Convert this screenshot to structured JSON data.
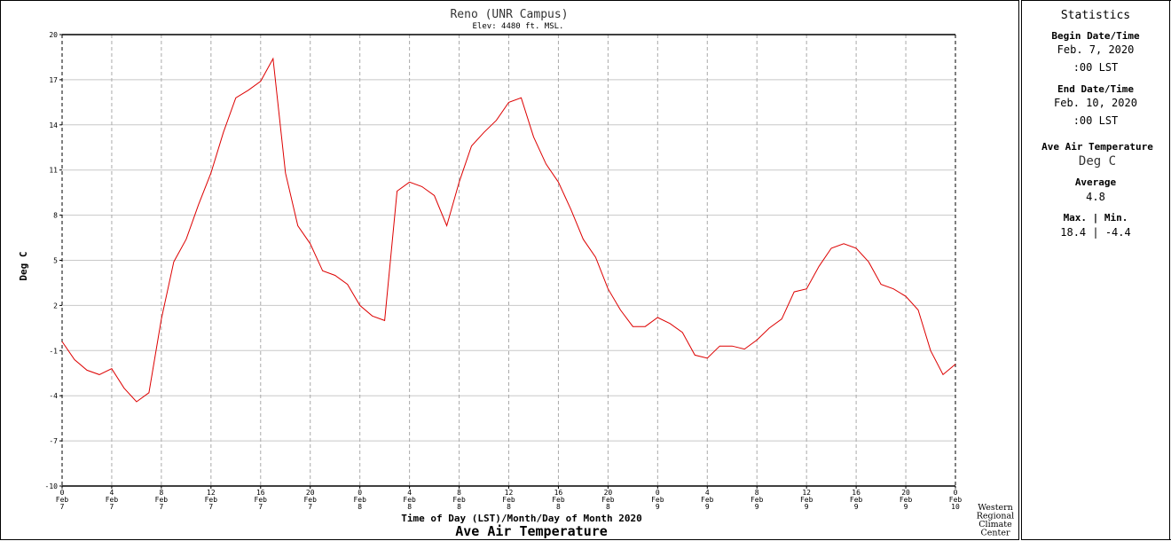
{
  "chart_data": {
    "type": "line",
    "title": "Reno (UNR Campus)",
    "subtitle": "Elev: 4480 ft. MSL.",
    "x_label": "Time of Day (LST)/Month/Day of Month 2020",
    "y_label": "Deg C",
    "bottom_title": "Ave Air Temperature",
    "credit": [
      "Western",
      "Regional",
      "Climate",
      "Center"
    ],
    "x": [
      0,
      1,
      2,
      3,
      4,
      5,
      6,
      7,
      8,
      9,
      10,
      11,
      12,
      13,
      14,
      15,
      16,
      17,
      18,
      19,
      20,
      21,
      22,
      23,
      24,
      25,
      26,
      27,
      28,
      29,
      30,
      31,
      32,
      33,
      34,
      35,
      36,
      37,
      38,
      39,
      40,
      41,
      42,
      43,
      44,
      45,
      46,
      47,
      48,
      49,
      50,
      51,
      52,
      53,
      54,
      55,
      56,
      57,
      58,
      59,
      60,
      61,
      62,
      63,
      64,
      65,
      66,
      67,
      68,
      69,
      70,
      71,
      72
    ],
    "series": [
      {
        "name": "Ave Air Temperature",
        "color": "#dd0000",
        "values": [
          -0.4,
          -1.6,
          -2.3,
          -2.6,
          -2.2,
          -3.5,
          -4.4,
          -3.8,
          1.1,
          4.9,
          6.4,
          8.7,
          10.8,
          13.5,
          15.8,
          16.3,
          16.9,
          18.4,
          10.8,
          7.3,
          6.1,
          4.3,
          4.0,
          3.4,
          2.0,
          1.3,
          1.0,
          9.6,
          10.2,
          9.9,
          9.3,
          7.3,
          10.2,
          12.6,
          13.5,
          14.3,
          15.5,
          15.8,
          13.2,
          11.4,
          10.2,
          8.4,
          6.4,
          5.2,
          3.1,
          1.7,
          0.6,
          0.6,
          1.2,
          0.8,
          0.2,
          -1.3,
          -1.5,
          -0.7,
          -0.7,
          -0.9,
          -0.3,
          0.5,
          1.1,
          2.9,
          3.1,
          4.6,
          5.8,
          6.1,
          5.8,
          4.9,
          3.4,
          3.1,
          2.6,
          1.7,
          -1.0,
          -2.6,
          -1.9
        ]
      }
    ],
    "xlim": [
      0,
      72
    ],
    "xticks": [
      {
        "value": 0,
        "label": [
          "0",
          "Feb",
          "7"
        ]
      },
      {
        "value": 4,
        "label": [
          "4",
          "Feb",
          "7"
        ]
      },
      {
        "value": 8,
        "label": [
          "8",
          "Feb",
          "7"
        ]
      },
      {
        "value": 12,
        "label": [
          "12",
          "Feb",
          "7"
        ]
      },
      {
        "value": 16,
        "label": [
          "16",
          "Feb",
          "7"
        ]
      },
      {
        "value": 20,
        "label": [
          "20",
          "Feb",
          "7"
        ]
      },
      {
        "value": 24,
        "label": [
          "0",
          "Feb",
          "8"
        ]
      },
      {
        "value": 28,
        "label": [
          "4",
          "Feb",
          "8"
        ]
      },
      {
        "value": 32,
        "label": [
          "8",
          "Feb",
          "8"
        ]
      },
      {
        "value": 36,
        "label": [
          "12",
          "Feb",
          "8"
        ]
      },
      {
        "value": 40,
        "label": [
          "16",
          "Feb",
          "8"
        ]
      },
      {
        "value": 44,
        "label": [
          "20",
          "Feb",
          "8"
        ]
      },
      {
        "value": 48,
        "label": [
          "0",
          "Feb",
          "9"
        ]
      },
      {
        "value": 52,
        "label": [
          "4",
          "Feb",
          "9"
        ]
      },
      {
        "value": 56,
        "label": [
          "8",
          "Feb",
          "9"
        ]
      },
      {
        "value": 60,
        "label": [
          "12",
          "Feb",
          "9"
        ]
      },
      {
        "value": 64,
        "label": [
          "16",
          "Feb",
          "9"
        ]
      },
      {
        "value": 68,
        "label": [
          "20",
          "Feb",
          "9"
        ]
      },
      {
        "value": 72,
        "label": [
          "0",
          "Feb",
          "10"
        ]
      }
    ],
    "ylim": [
      -10,
      20
    ],
    "yticks": [
      -10,
      -7,
      -4,
      -1,
      2,
      5,
      8,
      11,
      14,
      17,
      20
    ],
    "grid": true
  },
  "statistics": {
    "title": "Statistics",
    "begin_label": "Begin Date/Time",
    "begin_date": "Feb. 7, 2020",
    "begin_time": ":00 LST",
    "end_label": "End Date/Time",
    "end_date": "Feb. 10, 2020",
    "end_time": ":00 LST",
    "variable": "Ave Air Temperature",
    "units": "Deg C",
    "average_label": "Average",
    "average": "4.8",
    "maxmin_label": "Max. | Min.",
    "maxmin": "18.4 | -4.4"
  }
}
